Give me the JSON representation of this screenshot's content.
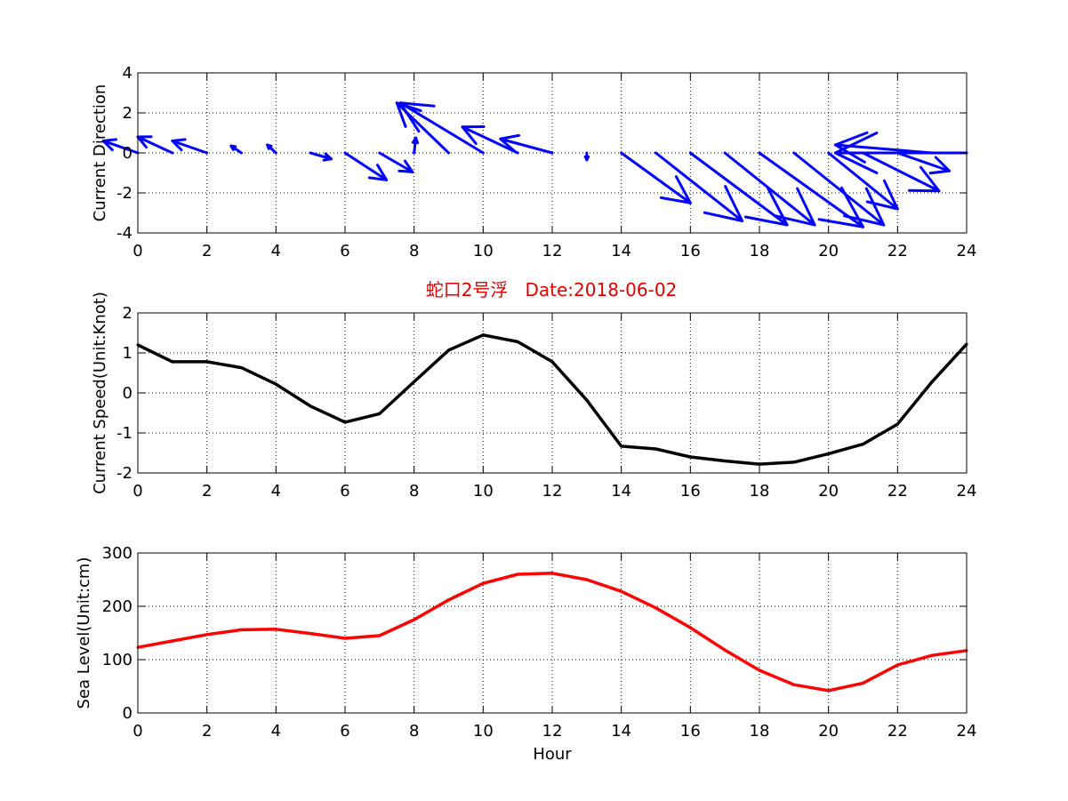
{
  "figure_title": "蛇口2号浮   Date:2018-06-02",
  "title_color": "#e00000",
  "chart_data": [
    {
      "type": "quiver",
      "ylabel": "Current Direction",
      "xlabel": "",
      "xlim": [
        0,
        24
      ],
      "ylim": [
        -4,
        4
      ],
      "xticks": [
        0,
        2,
        4,
        6,
        8,
        10,
        12,
        14,
        16,
        18,
        20,
        22,
        24
      ],
      "yticks": [
        -4,
        -2,
        0,
        2,
        4
      ],
      "grid": true,
      "color": "#0000ff",
      "x": [
        0,
        1,
        2,
        3,
        4,
        5,
        6,
        7,
        8,
        9,
        10,
        11,
        12,
        13,
        14,
        15,
        16,
        17,
        18,
        19,
        20,
        21,
        22,
        23,
        24
      ],
      "u": [
        -1.0,
        -1.0,
        -1.0,
        -0.3,
        -0.25,
        0.6,
        1.2,
        0.95,
        0.05,
        -1.5,
        -2.4,
        -1.6,
        -1.5,
        0.0,
        2.0,
        2.5,
        2.8,
        2.6,
        3.0,
        2.6,
        2.0,
        2.2,
        1.5,
        -2.8,
        -3.8
      ],
      "v": [
        0.6,
        0.8,
        0.6,
        0.35,
        0.4,
        -0.3,
        -1.35,
        -0.95,
        0.75,
        2.5,
        2.5,
        1.3,
        0.7,
        -0.35,
        -2.5,
        -3.4,
        -3.6,
        -3.6,
        -3.7,
        -3.6,
        -2.8,
        -1.9,
        -0.9,
        0.4,
        0.0
      ]
    },
    {
      "type": "line",
      "ylabel": "Current Speed(Unit:Knot)",
      "xlabel": "",
      "xlim": [
        0,
        24
      ],
      "ylim": [
        -2,
        2
      ],
      "xticks": [
        0,
        2,
        4,
        6,
        8,
        10,
        12,
        14,
        16,
        18,
        20,
        22,
        24
      ],
      "yticks": [
        -2,
        -1,
        0,
        1,
        2
      ],
      "grid": true,
      "color": "#000000",
      "x": [
        0,
        1,
        2,
        3,
        4,
        5,
        6,
        7,
        8,
        9,
        10,
        11,
        12,
        13,
        14,
        15,
        16,
        17,
        18,
        19,
        20,
        21,
        22,
        23,
        24
      ],
      "y": [
        1.2,
        0.78,
        0.78,
        0.63,
        0.22,
        -0.33,
        -0.73,
        -0.52,
        0.28,
        1.07,
        1.45,
        1.28,
        0.78,
        -0.18,
        -1.33,
        -1.4,
        -1.6,
        -1.7,
        -1.78,
        -1.73,
        -1.52,
        -1.28,
        -0.78,
        0.28,
        1.22
      ]
    },
    {
      "type": "line",
      "ylabel": "Sea Level(Unit:cm)",
      "xlabel": "Hour",
      "xlim": [
        0,
        24
      ],
      "ylim": [
        0,
        300
      ],
      "xticks": [
        0,
        2,
        4,
        6,
        8,
        10,
        12,
        14,
        16,
        18,
        20,
        22,
        24
      ],
      "yticks": [
        0,
        100,
        200,
        300
      ],
      "grid": true,
      "color": "#ff0000",
      "x": [
        0,
        1,
        2,
        3,
        4,
        5,
        6,
        7,
        8,
        9,
        10,
        11,
        12,
        13,
        14,
        15,
        16,
        17,
        18,
        19,
        20,
        21,
        22,
        23,
        24
      ],
      "y": [
        123,
        135,
        147,
        156,
        157,
        149,
        140,
        145,
        175,
        212,
        243,
        260,
        262,
        250,
        228,
        197,
        160,
        118,
        80,
        53,
        42,
        56,
        90,
        108,
        117
      ]
    }
  ]
}
